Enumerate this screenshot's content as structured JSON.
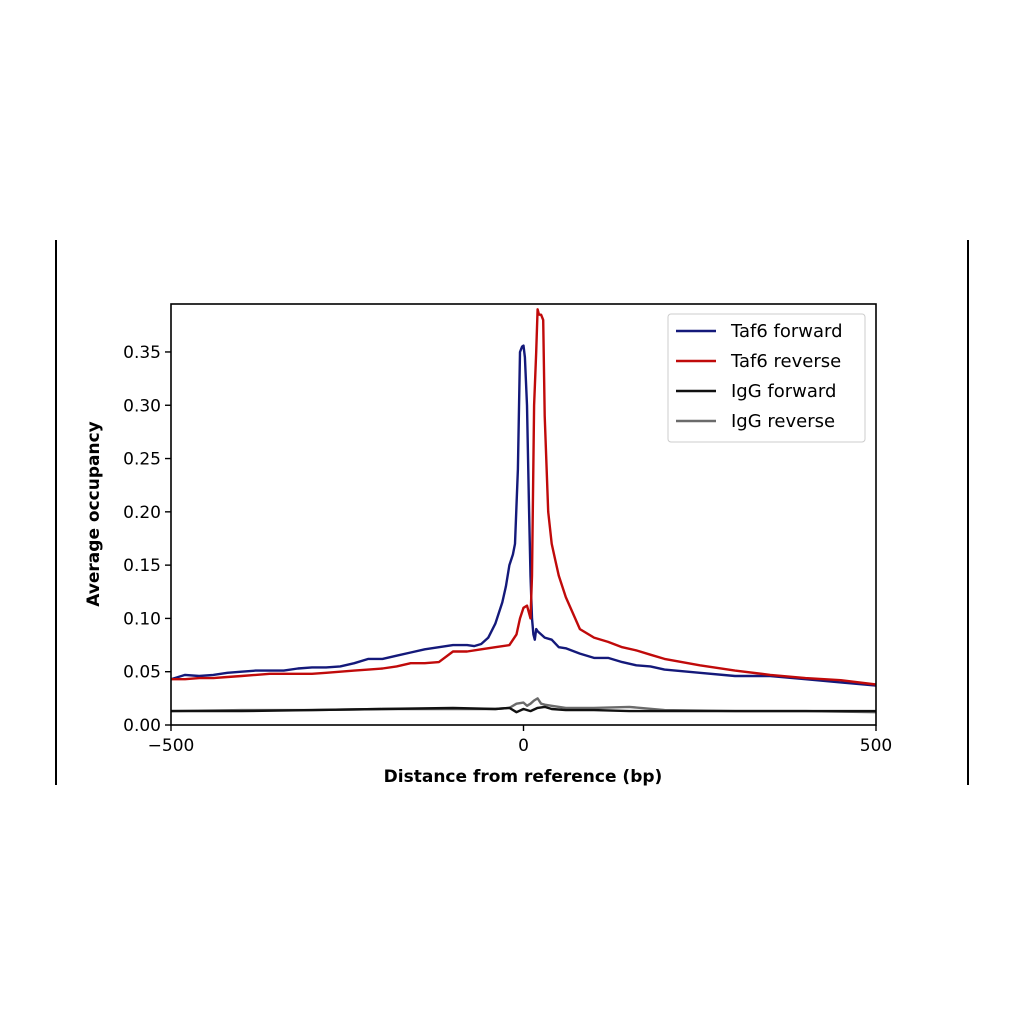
{
  "chart_data": {
    "type": "line",
    "title": "",
    "xlabel": "Distance from reference (bp)",
    "ylabel": "Average occupancy",
    "xlim": [
      -500,
      500
    ],
    "ylim": [
      0,
      0.395
    ],
    "xticks": [
      -500,
      0,
      500
    ],
    "xtick_labels": [
      "−500",
      "0",
      "500"
    ],
    "yticks": [
      0.0,
      0.05,
      0.1,
      0.15,
      0.2,
      0.25,
      0.3,
      0.35
    ],
    "ytick_labels": [
      "0.00",
      "0.05",
      "0.10",
      "0.15",
      "0.20",
      "0.25",
      "0.30",
      "0.35"
    ],
    "grid": false,
    "legend_position": "top-right",
    "series": [
      {
        "name": "Taf6 forward",
        "color": "#14197a",
        "x": [
          -500,
          -480,
          -460,
          -440,
          -420,
          -400,
          -380,
          -360,
          -340,
          -320,
          -300,
          -280,
          -260,
          -240,
          -220,
          -200,
          -180,
          -160,
          -140,
          -120,
          -100,
          -80,
          -70,
          -60,
          -50,
          -40,
          -30,
          -25,
          -20,
          -15,
          -12,
          -8,
          -5,
          -2,
          0,
          2,
          5,
          8,
          10,
          12,
          14,
          16,
          18,
          20,
          25,
          30,
          40,
          50,
          60,
          80,
          100,
          120,
          140,
          160,
          180,
          200,
          250,
          300,
          350,
          400,
          450,
          500
        ],
        "values": [
          0.043,
          0.047,
          0.046,
          0.047,
          0.049,
          0.05,
          0.051,
          0.051,
          0.051,
          0.053,
          0.054,
          0.054,
          0.055,
          0.058,
          0.062,
          0.062,
          0.065,
          0.068,
          0.071,
          0.073,
          0.075,
          0.075,
          0.074,
          0.076,
          0.082,
          0.095,
          0.115,
          0.13,
          0.15,
          0.16,
          0.17,
          0.24,
          0.35,
          0.355,
          0.356,
          0.345,
          0.3,
          0.2,
          0.14,
          0.1,
          0.085,
          0.08,
          0.09,
          0.088,
          0.085,
          0.082,
          0.08,
          0.073,
          0.072,
          0.067,
          0.063,
          0.063,
          0.059,
          0.056,
          0.055,
          0.052,
          0.049,
          0.046,
          0.046,
          0.043,
          0.04,
          0.037
        ]
      },
      {
        "name": "Taf6 reverse",
        "color": "#c00a0a",
        "x": [
          -500,
          -480,
          -460,
          -440,
          -420,
          -400,
          -380,
          -360,
          -340,
          -320,
          -300,
          -280,
          -260,
          -240,
          -220,
          -200,
          -180,
          -160,
          -140,
          -120,
          -100,
          -80,
          -60,
          -40,
          -20,
          -10,
          -5,
          0,
          5,
          10,
          12,
          15,
          18,
          20,
          22,
          25,
          28,
          30,
          35,
          40,
          45,
          50,
          60,
          80,
          100,
          120,
          140,
          160,
          180,
          200,
          250,
          300,
          350,
          400,
          450,
          500
        ],
        "values": [
          0.043,
          0.043,
          0.044,
          0.044,
          0.045,
          0.046,
          0.047,
          0.048,
          0.048,
          0.048,
          0.048,
          0.049,
          0.05,
          0.051,
          0.052,
          0.053,
          0.055,
          0.058,
          0.058,
          0.059,
          0.069,
          0.069,
          0.071,
          0.073,
          0.075,
          0.085,
          0.1,
          0.11,
          0.112,
          0.1,
          0.14,
          0.3,
          0.35,
          0.39,
          0.385,
          0.385,
          0.38,
          0.29,
          0.2,
          0.17,
          0.155,
          0.14,
          0.12,
          0.09,
          0.082,
          0.078,
          0.073,
          0.07,
          0.066,
          0.062,
          0.056,
          0.051,
          0.047,
          0.044,
          0.042,
          0.038
        ]
      },
      {
        "name": "IgG forward",
        "color": "#111111",
        "x": [
          -500,
          -400,
          -300,
          -200,
          -100,
          -40,
          -20,
          -10,
          0,
          10,
          20,
          30,
          40,
          60,
          100,
          150,
          200,
          300,
          400,
          500
        ],
        "values": [
          0.013,
          0.013,
          0.014,
          0.015,
          0.016,
          0.015,
          0.016,
          0.012,
          0.015,
          0.013,
          0.016,
          0.017,
          0.015,
          0.014,
          0.014,
          0.013,
          0.013,
          0.013,
          0.013,
          0.013
        ]
      },
      {
        "name": "IgG reverse",
        "color": "#6b6b6b",
        "x": [
          -500,
          -400,
          -300,
          -200,
          -100,
          -40,
          -20,
          -10,
          0,
          5,
          10,
          15,
          20,
          25,
          30,
          40,
          60,
          100,
          150,
          200,
          300,
          400,
          500
        ],
        "values": [
          0.013,
          0.014,
          0.014,
          0.015,
          0.015,
          0.015,
          0.016,
          0.02,
          0.021,
          0.018,
          0.02,
          0.023,
          0.025,
          0.02,
          0.019,
          0.018,
          0.016,
          0.016,
          0.017,
          0.014,
          0.013,
          0.013,
          0.012
        ]
      }
    ]
  }
}
